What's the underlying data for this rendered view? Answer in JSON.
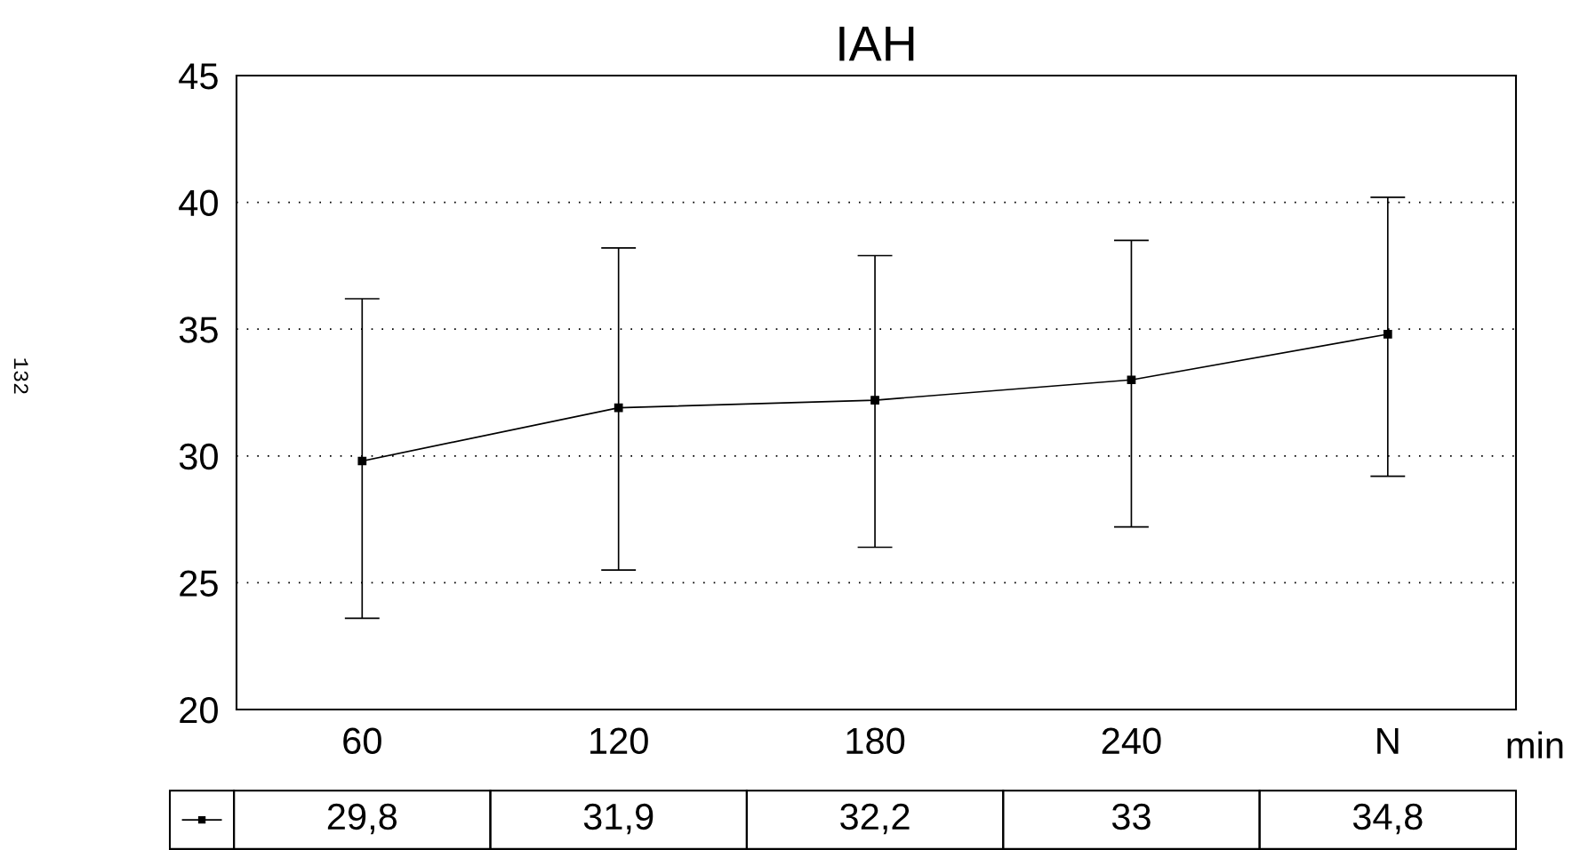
{
  "chart_data": {
    "type": "line",
    "title": "IAH",
    "xlabel": "min",
    "categories": [
      "60",
      "120",
      "180",
      "240",
      "N"
    ],
    "series": [
      {
        "color": "#000000",
        "values": [
          29.8,
          31.9,
          32.2,
          33,
          34.8
        ],
        "errors": [
          [
            23.6,
            36.2
          ],
          [
            25.5,
            38.2
          ],
          [
            26.4,
            37.9
          ],
          [
            27.2,
            38.5
          ],
          [
            29.2,
            40.2
          ]
        ],
        "value_labels": [
          "29,8",
          "31,9",
          "32,2",
          "33",
          "34,8"
        ]
      }
    ],
    "ylim": [
      20,
      45
    ],
    "yticks": [
      20,
      25,
      30,
      35,
      40,
      45
    ],
    "grid": "y",
    "marker": "square",
    "line_style": "solid",
    "annotations": [
      "132"
    ]
  }
}
